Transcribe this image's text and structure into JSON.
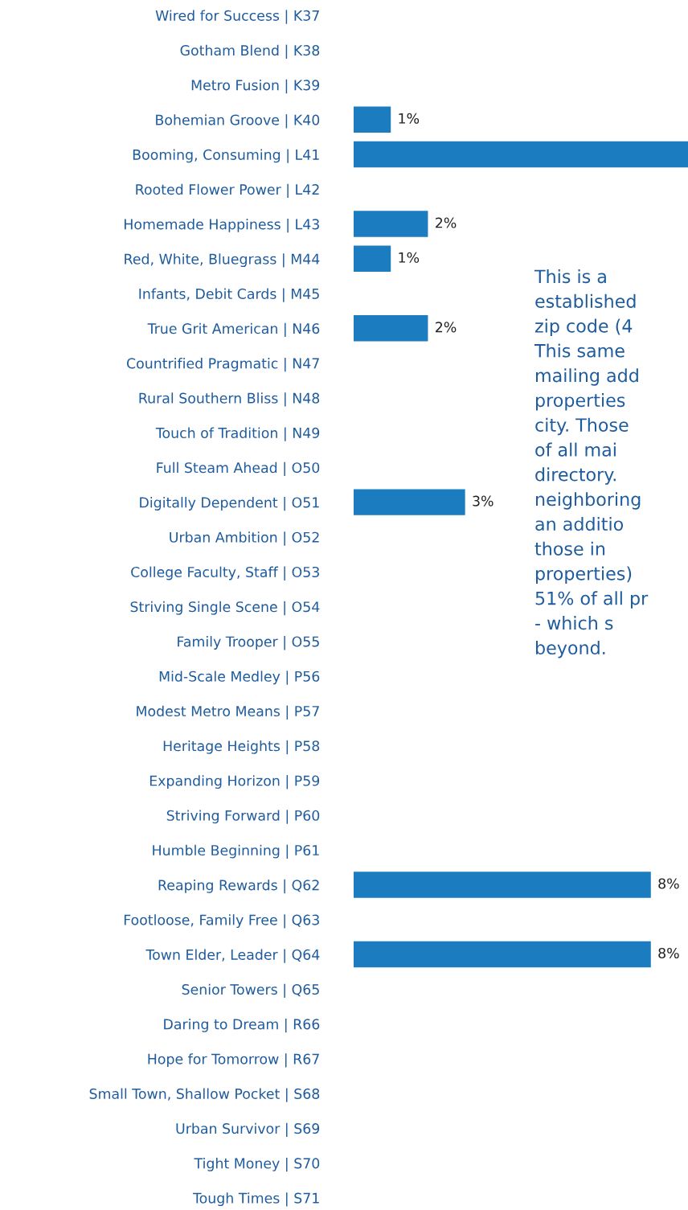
{
  "chart_data": {
    "type": "bar",
    "orientation": "horizontal",
    "color": "#1b7cc0",
    "categories": [
      "Wired for Success | K37",
      "Gotham Blend | K38",
      "Metro Fusion | K39",
      "Bohemian Groove | K40",
      "Booming, Consuming | L41",
      "Rooted Flower Power | L42",
      "Homemade Happiness | L43",
      "Red, White, Bluegrass | M44",
      "Infants, Debit Cards | M45",
      "True Grit American | N46",
      "Countrified Pragmatic | N47",
      "Rural Southern Bliss | N48",
      "Touch of Tradition | N49",
      "Full Steam Ahead | O50",
      "Digitally Dependent | O51",
      "Urban Ambition | O52",
      "College Faculty, Staff | O53",
      "Striving Single Scene | O54",
      "Family Trooper | O55",
      "Mid-Scale Medley | P56",
      "Modest Metro Means | P57",
      "Heritage Heights | P58",
      "Expanding Horizon | P59",
      "Striving Forward | P60",
      "Humble Beginning | P61",
      "Reaping Rewards | Q62",
      "Footloose, Family Free | Q63",
      "Town Elder, Leader | Q64",
      "Senior Towers | Q65",
      "Daring to Dream | R66",
      "Hope for Tomorrow | R67",
      "Small Town, Shallow Pocket | S68",
      "Urban Survivor | S69",
      "Tight Money | S70",
      "Tough Times | S71"
    ],
    "values": [
      null,
      null,
      null,
      1,
      9,
      null,
      2,
      1,
      null,
      2,
      null,
      null,
      null,
      null,
      3,
      null,
      null,
      null,
      null,
      null,
      null,
      null,
      null,
      null,
      null,
      8,
      null,
      8,
      null,
      null,
      null,
      null,
      null,
      null,
      null
    ],
    "value_labels": [
      null,
      null,
      null,
      "1%",
      null,
      null,
      "2%",
      "1%",
      null,
      "2%",
      null,
      null,
      null,
      null,
      "3%",
      null,
      null,
      null,
      null,
      null,
      null,
      null,
      null,
      null,
      null,
      "8%",
      null,
      "8%",
      null,
      null,
      null,
      null,
      null,
      null,
      null
    ],
    "xlim": [
      0,
      9
    ],
    "tick_labels": "y",
    "grid": false,
    "annotations": [
      "This is a\nestablished\nzip code (4\nThis same\nmailing add\nproperties\ncity. Those\nof all mai\ndirectory.\nneighboring\nan additio\nthose in\nproperties)\n51% of all pr\n- which s\nbeyond."
    ]
  }
}
